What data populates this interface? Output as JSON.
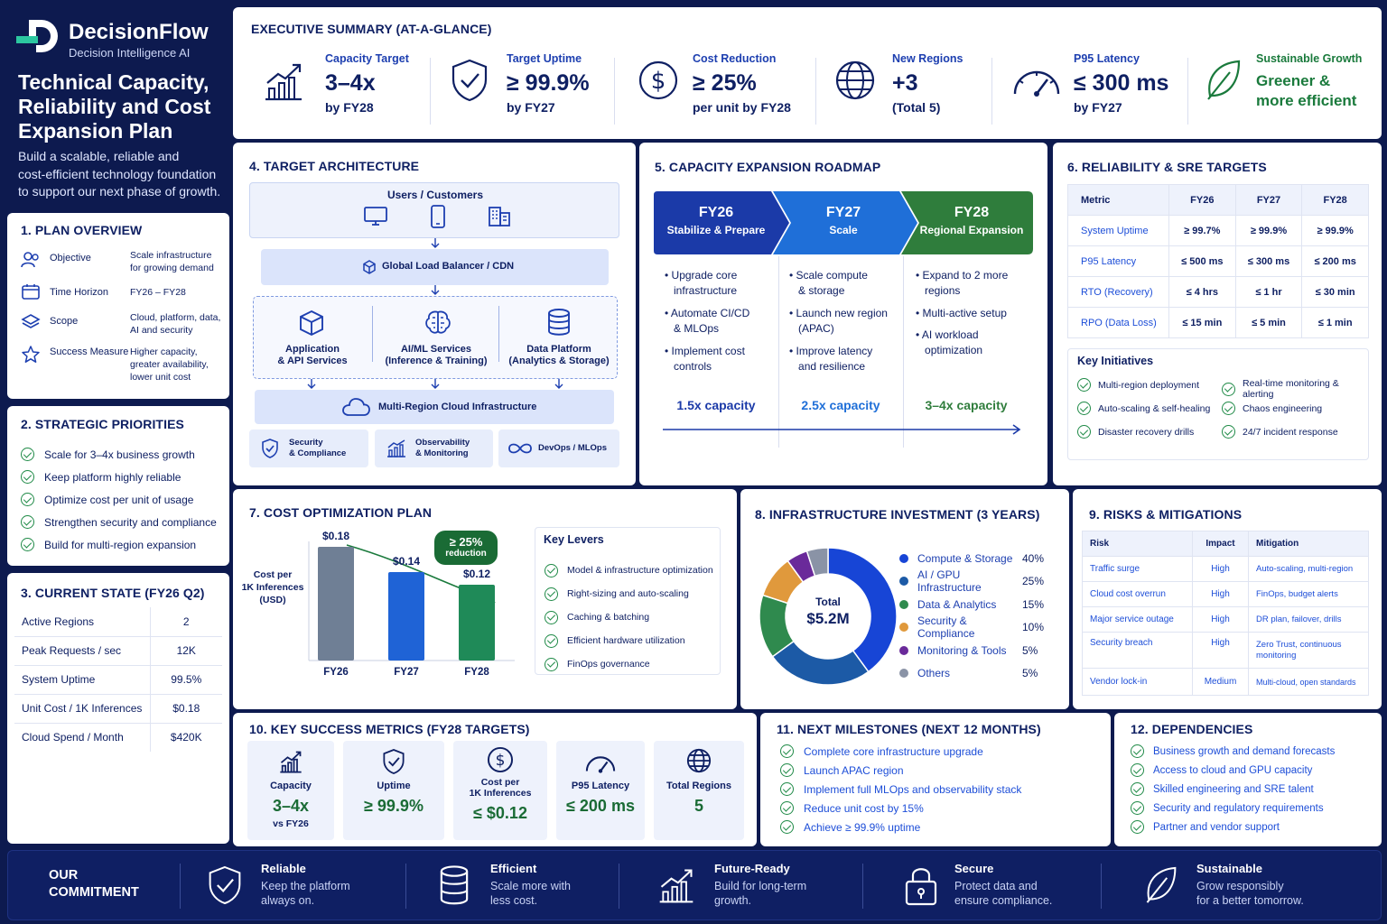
{
  "brand": {
    "name": "DecisionFlow",
    "tagline": "Decision Intelligence AI"
  },
  "page": {
    "title_lines": [
      "Technical Capacity,",
      "Reliability and Cost",
      "Expansion Plan"
    ],
    "subtitle_lines": [
      "Build a scalable, reliable and",
      "cost-efficient technology foundation",
      "to support our next phase of growth."
    ]
  },
  "plan_overview": {
    "title": "1.   PLAN OVERVIEW",
    "items": [
      {
        "label": "Objective",
        "value": [
          "Scale infrastructure",
          "for growing demand"
        ]
      },
      {
        "label": "Time Horizon",
        "value": [
          "FY26 – FY28"
        ]
      },
      {
        "label": "Scope",
        "value": [
          "Cloud, platform, data,",
          "AI and security"
        ]
      },
      {
        "label": "Success Measure",
        "value": [
          "Higher capacity,",
          "greater availability,",
          "lower unit cost"
        ]
      }
    ]
  },
  "strategic_priorities": {
    "title": "2.   STRATEGIC PRIORITIES",
    "items": [
      "Scale for 3–4x business growth",
      "Keep platform highly reliable",
      "Optimize cost per unit of usage",
      "Strengthen security and compliance",
      "Build for multi-region expansion"
    ]
  },
  "current_state": {
    "title": "3.   CURRENT STATE (FY26 Q2)",
    "rows": [
      {
        "label": "Active Regions",
        "value": "2"
      },
      {
        "label": "Peak Requests / sec",
        "value": "12K"
      },
      {
        "label": "System Uptime",
        "value": "99.5%"
      },
      {
        "label": "Unit Cost / 1K Inferences",
        "value": "$0.18"
      },
      {
        "label": "Cloud Spend / Month",
        "value": "$420K"
      }
    ]
  },
  "exec_summary": {
    "title": "EXECUTIVE SUMMARY (AT-A-GLANCE)",
    "items": [
      {
        "label": "Capacity Target",
        "value": "3–4x",
        "sub": "by FY28",
        "icon": "growth-chart-icon"
      },
      {
        "label": "Target Uptime",
        "value": "≥ 99.9%",
        "sub": "by FY27",
        "icon": "shield-check-icon"
      },
      {
        "label": "Cost Reduction",
        "value": "≥ 25%",
        "sub": "per unit by FY28",
        "icon": "dollar-icon"
      },
      {
        "label": "New Regions",
        "value": "+3",
        "sub": "(Total 5)",
        "icon": "globe-icon"
      },
      {
        "label": "P95 Latency",
        "value": "≤ 300 ms",
        "sub": "by FY27",
        "icon": "gauge-icon"
      },
      {
        "label": "Sustainable Growth",
        "value": "Greener &",
        "sub": "more efficient",
        "icon": "leaf-icon"
      }
    ]
  },
  "architecture": {
    "title": "4.   TARGET ARCHITECTURE",
    "users": "Users / Customers",
    "load_balancer": "Global Load Balancer / CDN",
    "services": [
      {
        "lines": [
          "Application",
          "& API Services"
        ]
      },
      {
        "lines": [
          "AI/ML Services",
          "(Inference & Training)"
        ]
      },
      {
        "lines": [
          "Data Platform",
          "(Analytics & Storage)"
        ]
      }
    ],
    "cloud": "Multi-Region Cloud Infrastructure",
    "bottom": [
      {
        "lines": [
          "Security",
          "& Compliance"
        ]
      },
      {
        "lines": [
          "Observability",
          "& Monitoring"
        ]
      },
      {
        "lines": [
          "DevOps / MLOps"
        ]
      }
    ]
  },
  "roadmap": {
    "title": "5.   CAPACITY EXPANSION ROADMAP",
    "colors": [
      "#1b3aa8",
      "#1f6fd8",
      "#2f7d3c"
    ],
    "phases": [
      {
        "year": "FY26",
        "name": "Stabilize & Prepare",
        "items": [
          [
            "Upgrade core",
            "infrastructure"
          ],
          [
            "Automate CI/CD",
            "& MLOps"
          ],
          [
            "Implement cost",
            "controls"
          ]
        ],
        "capacity": "1.5x capacity"
      },
      {
        "year": "FY27",
        "name": "Scale",
        "items": [
          [
            "Scale compute",
            "& storage"
          ],
          [
            "Launch new region",
            "(APAC)"
          ],
          [
            "Improve latency",
            "and resilience"
          ]
        ],
        "capacity": "2.5x capacity"
      },
      {
        "year": "FY28",
        "name": "Regional Expansion",
        "items": [
          [
            "Expand to 2 more",
            "regions"
          ],
          [
            "Multi-active setup"
          ],
          [
            "AI workload",
            "optimization"
          ]
        ],
        "capacity": "3–4x capacity"
      }
    ]
  },
  "reliability": {
    "title": "6.   RELIABILITY & SRE TARGETS",
    "headers": [
      "Metric",
      "FY26",
      "FY27",
      "FY28"
    ],
    "rows": [
      [
        "System Uptime",
        "≥ 99.7%",
        "≥ 99.9%",
        "≥ 99.9%"
      ],
      [
        "P95 Latency",
        "≤ 500 ms",
        "≤ 300 ms",
        "≤ 200 ms"
      ],
      [
        "RTO (Recovery)",
        "≤ 4 hrs",
        "≤ 1 hr",
        "≤ 30 min"
      ],
      [
        "RPO (Data Loss)",
        "≤ 15 min",
        "≤ 5 min",
        "≤ 1 min"
      ]
    ],
    "initiatives_title": "Key Initiatives",
    "initiatives": [
      "Multi-region deployment",
      "Real-time monitoring & alerting",
      "Auto-scaling & self-healing",
      "Chaos engineering",
      "Disaster recovery drills",
      "24/7 incident response"
    ]
  },
  "cost_plan": {
    "title": "7.   COST OPTIMIZATION PLAN",
    "ylabel_lines": [
      "Cost per",
      "1K Inferences",
      "(USD)"
    ],
    "badge_lines": [
      "≥ 25%",
      "reduction"
    ],
    "levers_title": "Key Levers",
    "levers": [
      "Model & infrastructure optimization",
      "Right-sizing and auto-scaling",
      "Caching & batching",
      "Efficient hardware utilization",
      "FinOps governance"
    ]
  },
  "investment": {
    "title": "8.   INFRASTRUCTURE INVESTMENT (3 YEARS)",
    "total_label": "Total",
    "total_value": "$5.2M"
  },
  "risks": {
    "title": "9.   RISKS & MITIGATIONS",
    "headers": [
      "Risk",
      "Impact",
      "Mitigation"
    ],
    "rows": [
      {
        "risk": "Traffic surge",
        "impact": "High",
        "mitigation": [
          "Auto-scaling, multi-region"
        ]
      },
      {
        "risk": "Cloud cost overrun",
        "impact": "High",
        "mitigation": [
          "FinOps, budget alerts"
        ]
      },
      {
        "risk": "Major service outage",
        "impact": "High",
        "mitigation": [
          "DR plan, failover, drills"
        ]
      },
      {
        "risk": "Security breach",
        "impact": "High",
        "mitigation": [
          "Zero Trust, continuous",
          "monitoring"
        ]
      },
      {
        "risk": "Vendor lock-in",
        "impact": "Medium",
        "mitigation": [
          "Multi-cloud, open standards"
        ]
      }
    ]
  },
  "success_metrics": {
    "title": "10.   KEY SUCCESS METRICS (FY28 TARGETS)",
    "items": [
      {
        "label_lines": [
          "Capacity"
        ],
        "value": "3–4x",
        "sub": "vs FY26",
        "icon": "growth-chart-icon"
      },
      {
        "label_lines": [
          "Uptime"
        ],
        "value": "≥ 99.9%",
        "sub": "",
        "icon": "shield-check-icon"
      },
      {
        "label_lines": [
          "Cost per",
          "1K Inferences"
        ],
        "value": "≤ $0.12",
        "sub": "",
        "icon": "dollar-icon"
      },
      {
        "label_lines": [
          "P95 Latency"
        ],
        "value": "≤ 200 ms",
        "sub": "",
        "icon": "gauge-icon"
      },
      {
        "label_lines": [
          "Total Regions"
        ],
        "value": "5",
        "sub": "",
        "icon": "globe-icon"
      }
    ]
  },
  "milestones": {
    "title": "11.   NEXT MILESTONES (NEXT 12 MONTHS)",
    "items": [
      "Complete core infrastructure upgrade",
      "Launch APAC region",
      "Implement full MLOps and observability stack",
      "Reduce unit cost by 15%",
      "Achieve ≥ 99.9% uptime"
    ]
  },
  "dependencies": {
    "title": "12.   DEPENDENCIES",
    "items": [
      "Business growth and demand forecasts",
      "Access to cloud and GPU capacity",
      "Skilled engineering and SRE talent",
      "Security and regulatory requirements",
      "Partner and vendor support"
    ]
  },
  "commitment": {
    "label_lines": [
      "OUR",
      "COMMITMENT"
    ],
    "items": [
      {
        "title": "Reliable",
        "lines": [
          "Keep the platform",
          "always on."
        ],
        "icon": "shield-check-icon"
      },
      {
        "title": "Efficient",
        "lines": [
          "Scale more with",
          "less cost."
        ],
        "icon": "database-icon"
      },
      {
        "title": "Future-Ready",
        "lines": [
          "Build for long-term",
          "growth."
        ],
        "icon": "growth-chart-icon"
      },
      {
        "title": "Secure",
        "lines": [
          "Protect data and",
          "ensure compliance."
        ],
        "icon": "lock-icon"
      },
      {
        "title": "Sustainable",
        "lines": [
          "Grow responsibly",
          "for a better tomorrow."
        ],
        "icon": "leaf-icon"
      }
    ]
  },
  "chart_data": [
    {
      "type": "bar",
      "categories": [
        "FY26",
        "FY27",
        "FY28"
      ],
      "values": [
        0.18,
        0.14,
        0.12
      ],
      "value_labels": [
        "$0.18",
        "$0.14",
        "$0.12"
      ],
      "colors": [
        "#6f7f95",
        "#1f63d6",
        "#1f8a58"
      ],
      "ylim": [
        0,
        0.2
      ]
    },
    {
      "type": "pie",
      "donut": true,
      "legend": "right",
      "slices": [
        {
          "label": "Compute & Storage",
          "value": 40,
          "display": "40%",
          "color": "#1745d6"
        },
        {
          "label": "AI / GPU Infrastructure",
          "value": 25,
          "display": "25%",
          "color": "#1c5aa6"
        },
        {
          "label": "Data & Analytics",
          "value": 15,
          "display": "15%",
          "color": "#2f8a4e"
        },
        {
          "label": "Security & Compliance",
          "value": 10,
          "display": "10%",
          "color": "#e0993c"
        },
        {
          "label": "Monitoring & Tools",
          "value": 5,
          "display": "5%",
          "color": "#6a2a9a"
        },
        {
          "label": "Others",
          "value": 5,
          "display": "5%",
          "color": "#8a93a6"
        }
      ]
    }
  ]
}
